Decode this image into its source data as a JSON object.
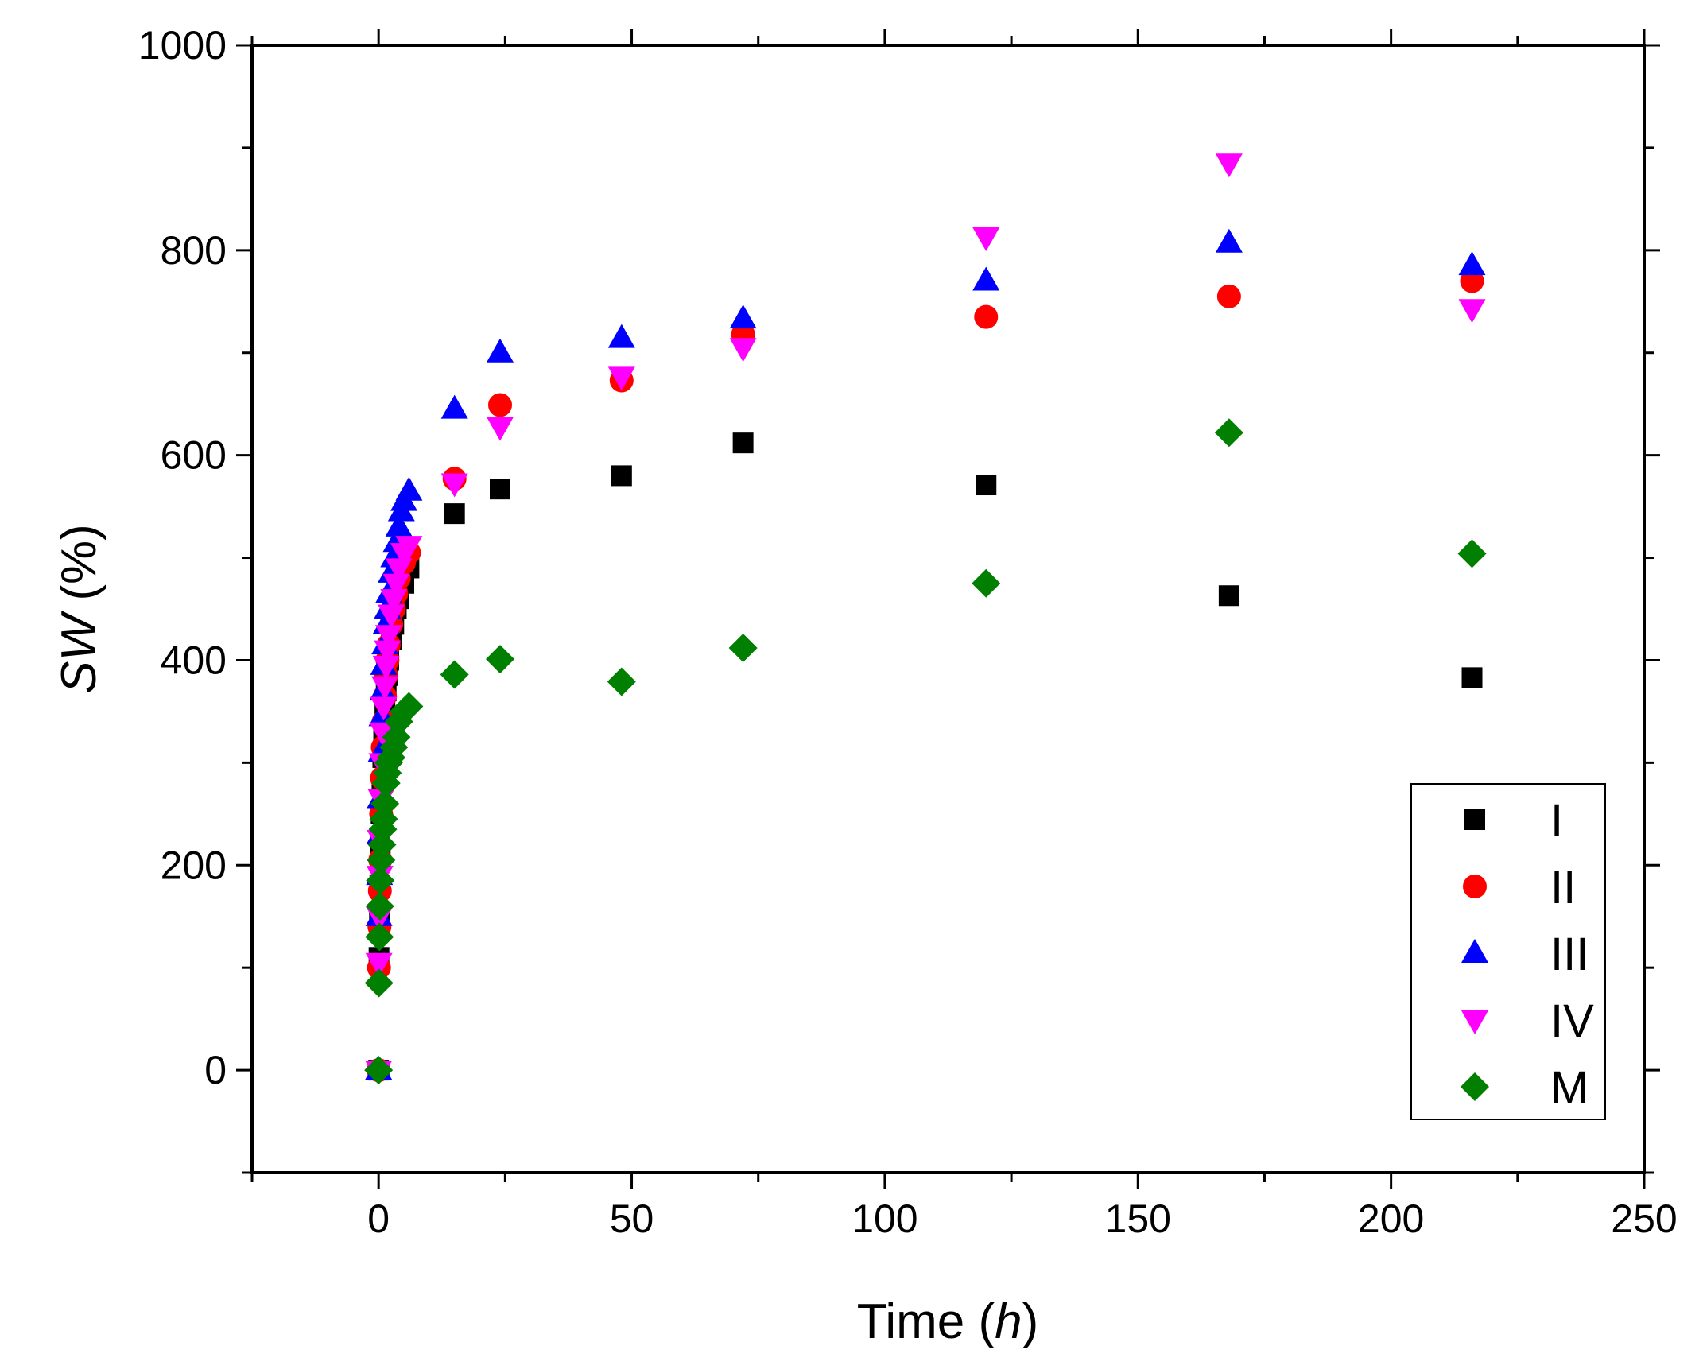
{
  "chart_data": {
    "type": "scatter",
    "title": "",
    "xlabel": {
      "main": "Time (",
      "italic": "h",
      "tail": ")"
    },
    "ylabel": {
      "italic": "SW",
      "tail": " (%)"
    },
    "xlim": [
      -25,
      250
    ],
    "ylim": [
      -100,
      1000
    ],
    "xticks": [
      0,
      50,
      100,
      150,
      200,
      250
    ],
    "xtick_labels": [
      "0",
      "50",
      "100",
      "150",
      "200",
      "250"
    ],
    "yticks": [
      0,
      200,
      400,
      600,
      800,
      1000
    ],
    "ytick_labels": [
      "0",
      "200",
      "400",
      "600",
      "800",
      "1000"
    ],
    "grid": false,
    "legend_position": "bottom-right",
    "series": [
      {
        "name": "I",
        "marker": "square",
        "color": "#000000",
        "x": [
          0,
          0.08,
          0.17,
          0.25,
          0.33,
          0.5,
          0.67,
          0.83,
          1,
          1.25,
          1.5,
          1.75,
          2,
          2.5,
          3,
          3.5,
          4,
          5,
          6,
          15,
          24,
          48,
          72,
          120,
          168,
          216
        ],
        "y": [
          0,
          110,
          150,
          180,
          210,
          250,
          280,
          305,
          330,
          350,
          370,
          385,
          400,
          420,
          435,
          450,
          460,
          475,
          490,
          543,
          567,
          580,
          612,
          571,
          463,
          383
        ]
      },
      {
        "name": "II",
        "marker": "circle",
        "color": "#ff0000",
        "x": [
          0,
          0.08,
          0.17,
          0.25,
          0.33,
          0.5,
          0.67,
          0.83,
          1,
          1.25,
          1.5,
          1.75,
          2,
          2.5,
          3,
          3.5,
          4,
          5,
          6,
          15,
          24,
          48,
          72,
          120,
          168,
          216
        ],
        "y": [
          0,
          100,
          140,
          175,
          205,
          250,
          285,
          315,
          340,
          365,
          385,
          400,
          415,
          435,
          450,
          465,
          480,
          495,
          505,
          577,
          649,
          673,
          718,
          735,
          755,
          770
        ]
      },
      {
        "name": "III",
        "marker": "triangle-up",
        "color": "#0000ff",
        "x": [
          0,
          0.08,
          0.17,
          0.25,
          0.33,
          0.5,
          0.67,
          0.83,
          1,
          1.25,
          1.5,
          1.75,
          2,
          2.5,
          3,
          3.5,
          4,
          4.5,
          5,
          6,
          15,
          24,
          48,
          72,
          120,
          168,
          216
        ],
        "y": [
          0,
          150,
          190,
          230,
          265,
          310,
          345,
          370,
          395,
          415,
          435,
          450,
          465,
          485,
          500,
          515,
          530,
          545,
          555,
          565,
          645,
          700,
          714,
          733,
          770,
          807,
          785
        ]
      },
      {
        "name": "IV",
        "marker": "triangle-down",
        "color": "#ff00ff",
        "x": [
          0,
          0.08,
          0.17,
          0.25,
          0.33,
          0.5,
          0.67,
          0.83,
          1,
          1.25,
          1.5,
          1.75,
          2,
          2.5,
          3,
          3.5,
          4,
          5,
          6,
          15,
          24,
          48,
          72,
          120,
          168,
          216
        ],
        "y": [
          0,
          105,
          150,
          190,
          225,
          265,
          300,
          330,
          355,
          375,
          395,
          410,
          425,
          445,
          460,
          475,
          490,
          505,
          512,
          573,
          628,
          677,
          705,
          813,
          885,
          743
        ]
      },
      {
        "name": "M",
        "marker": "diamond",
        "color": "#007f00",
        "x": [
          0,
          0.08,
          0.17,
          0.25,
          0.33,
          0.5,
          0.67,
          0.83,
          1,
          1.25,
          1.5,
          1.75,
          2,
          2.5,
          3,
          3.5,
          4,
          5,
          6,
          15,
          24,
          48,
          72,
          120,
          168,
          216
        ],
        "y": [
          0,
          85,
          130,
          160,
          185,
          205,
          220,
          235,
          245,
          260,
          280,
          290,
          300,
          305,
          315,
          325,
          340,
          350,
          355,
          386,
          401,
          379,
          412,
          475,
          622,
          504
        ]
      }
    ]
  }
}
